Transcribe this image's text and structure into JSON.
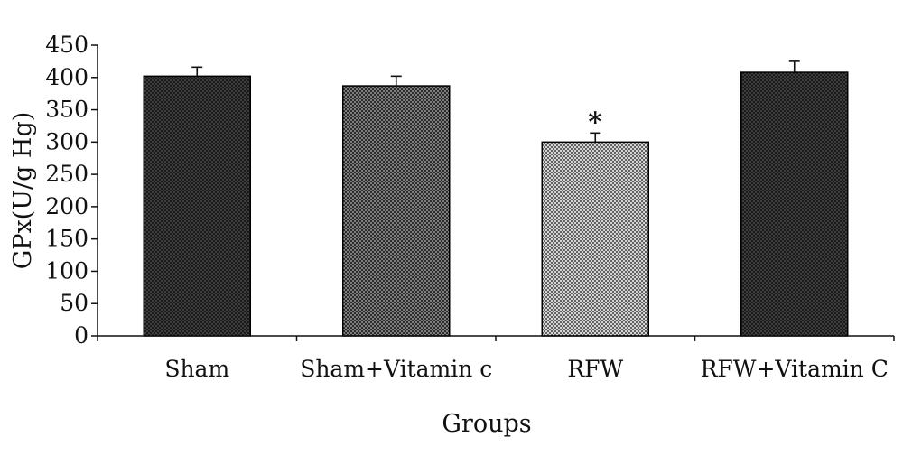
{
  "chart_data": {
    "type": "bar",
    "categories": [
      "Sham",
      "Sham+Vitamin c",
      "RFW",
      "RFW+Vitamin C"
    ],
    "values": [
      402,
      387,
      300,
      408
    ],
    "errors": [
      14,
      15,
      14,
      17
    ],
    "annotations": [
      "",
      "",
      "*",
      ""
    ],
    "xlabel": "Groups",
    "ylabel": "GPx(U/g Hg)",
    "ylim": [
      0,
      450
    ],
    "yticks": [
      0,
      50,
      100,
      150,
      200,
      250,
      300,
      350,
      400,
      450
    ],
    "grid": false,
    "legend": "none",
    "patterns": [
      "dark-dots",
      "medium-dots",
      "light-dots",
      "dark-dots"
    ]
  }
}
